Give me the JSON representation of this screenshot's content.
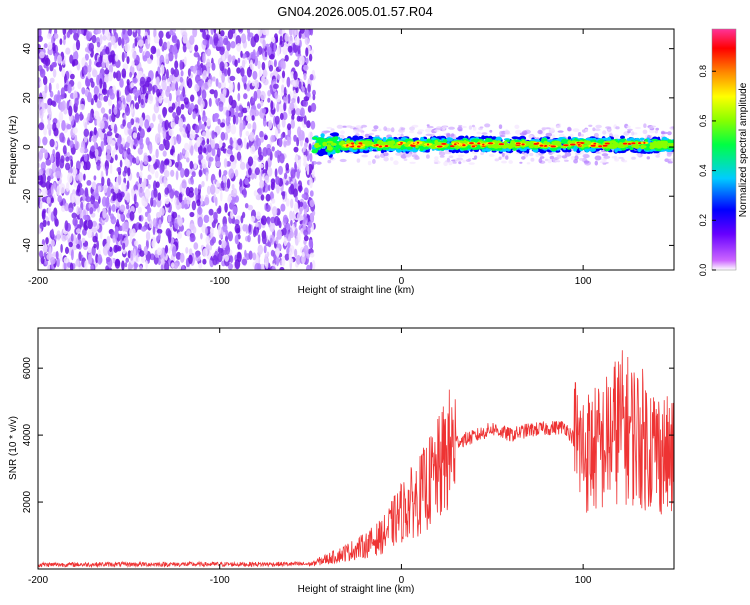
{
  "title": "GN04.2026.005.01.57.R04",
  "colors": {
    "axis": "#000000",
    "snr_line": "#ee3333",
    "noise_purple": "#7a2be8",
    "colorbar_stops": [
      "#ff00ff",
      "#0000ff",
      "#00e5ff",
      "#00ff00",
      "#ffff00",
      "#ff8800",
      "#ff0000",
      "#ff3399"
    ]
  },
  "chart_data": [
    {
      "type": "heatmap",
      "xlabel": "Height of straight line (km)",
      "ylabel": "Frequency (Hz)",
      "xlim": [
        -200,
        150
      ],
      "ylim": [
        -50,
        48
      ],
      "x_ticks": [
        -200,
        -100,
        0,
        100
      ],
      "y_ticks": [
        -40,
        -20,
        0,
        20,
        40
      ],
      "colorbar": {
        "label": "Normalized spectral amplitude",
        "range": [
          0,
          0.97
        ],
        "ticks": [
          "0.0",
          "0.2",
          "0.4",
          "0.6",
          "0.8"
        ],
        "tick_values": [
          0.0,
          0.2,
          0.4,
          0.6,
          0.8
        ]
      },
      "regions": [
        {
          "name": "",
          "x_range": [
            -200,
            -48
          ],
          "freq_range": [
            -50,
            48
          ],
          "amplitude": "low (0.0-0.2)"
        },
        {
          "name": "",
          "x_range": [
            -48,
            150
          ],
          "freq_center": 1,
          "freq_halfwidth": 3,
          "amplitude_peak": 0.97
        }
      ]
    },
    {
      "type": "line",
      "xlabel": "Height of straight line (km)",
      "ylabel": "SNR (10 * v/v)",
      "xlim": [
        -200,
        150
      ],
      "ylim": [
        0,
        7200
      ],
      "x_ticks": [
        -200,
        -100,
        0,
        100
      ],
      "y_ticks": [
        2000,
        4000,
        6000
      ],
      "series": [
        {
          "x": [
            -200,
            -150,
            -100,
            -50,
            -35,
            -20,
            -10,
            0,
            10,
            20,
            25,
            30,
            40,
            50,
            60,
            70,
            80,
            90,
            100,
            110,
            120,
            130,
            140,
            150
          ],
          "values": [
            130,
            140,
            140,
            150,
            400,
            700,
            1000,
            1700,
            2200,
            2900,
            3400,
            3800,
            3950,
            4200,
            4000,
            4150,
            4200,
            4250,
            3500,
            3600,
            4300,
            4000,
            3600,
            3200
          ]
        }
      ]
    }
  ]
}
